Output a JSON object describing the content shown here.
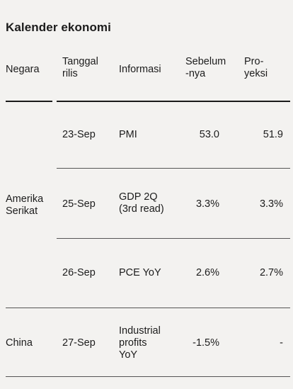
{
  "title": "Kalender ekonomi",
  "headers": {
    "country": "Negara",
    "date": "Tanggal\nrilis",
    "info": "Informasi",
    "previous": "Sebelum\n-nya",
    "forecast": "Pro-\nyeksi"
  },
  "groups": [
    {
      "country": "Amerika\nSerikat"
    },
    {
      "country": "China"
    }
  ],
  "rows": [
    {
      "date": "23-Sep",
      "info": "PMI",
      "previous": "53.0",
      "forecast": "51.9"
    },
    {
      "date": "25-Sep",
      "info": "GDP 2Q\n(3rd read)",
      "previous": "3.3%",
      "forecast": "3.3%"
    },
    {
      "date": "26-Sep",
      "info": "PCE YoY",
      "previous": "2.6%",
      "forecast": "2.7%"
    },
    {
      "date": "27-Sep",
      "info": "Industrial\nprofits\nYoY",
      "previous": "-1.5%",
      "forecast": "-"
    }
  ]
}
